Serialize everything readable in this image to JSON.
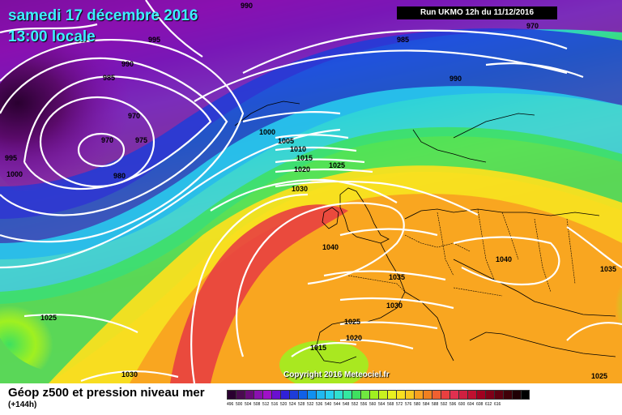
{
  "header": {
    "date": "samedi 17 décembre 2016",
    "local_time": "13:00 locale",
    "run": "Run UKMO 12h du 11/12/2016"
  },
  "copyright": "Copyright 2016 Meteociel.fr",
  "footer": {
    "title": "Géop z500 et pression niveau mer",
    "lead_time": "(+144h)"
  },
  "colors": {
    "low_center": "#5a0a6a",
    "purple": "#8a10b0",
    "blue": "#1e3cd8",
    "cyan": "#28d0f0",
    "green": "#3ee060",
    "yellow_green": "#b8f020",
    "yellow": "#f8e020",
    "orange": "#f8a020",
    "red": "#e84040",
    "isobar": "#ffffff",
    "country_border": "#000000"
  },
  "scale": {
    "colors": [
      "#2a0030",
      "#4a0a50",
      "#6a0a7a",
      "#8a10b0",
      "#a010c8",
      "#6a10d0",
      "#3020d8",
      "#1e3cd8",
      "#1060e8",
      "#1090f0",
      "#20b8f0",
      "#28d0f0",
      "#30e0d0",
      "#34e8a0",
      "#3ee060",
      "#70e840",
      "#a0f020",
      "#c8f020",
      "#e8f020",
      "#f8e020",
      "#f8c820",
      "#f8a020",
      "#f08020",
      "#f06030",
      "#e84040",
      "#e03050",
      "#d02040",
      "#c01030",
      "#a00020",
      "#800018",
      "#600010",
      "#400008",
      "#200004",
      "#000000"
    ],
    "labels": [
      "496",
      "500",
      "504",
      "508",
      "512",
      "516",
      "520",
      "524",
      "528",
      "532",
      "536",
      "540",
      "544",
      "548",
      "552",
      "556",
      "560",
      "564",
      "568",
      "572",
      "576",
      "580",
      "584",
      "588",
      "592",
      "596",
      "600",
      "604",
      "608",
      "612",
      "616",
      "",
      "",
      ""
    ]
  },
  "isobar_labels": [
    "990",
    "970",
    "995",
    "985",
    "990",
    "985",
    "970",
    "975",
    "970",
    "980",
    "995",
    "1000",
    "990",
    "1000",
    "1005",
    "1010",
    "1015",
    "1020",
    "1025",
    "1030",
    "1040",
    "1035",
    "1030",
    "1040",
    "1035",
    "1025",
    "1020",
    "1015",
    "1025",
    "1030",
    "1025"
  ]
}
